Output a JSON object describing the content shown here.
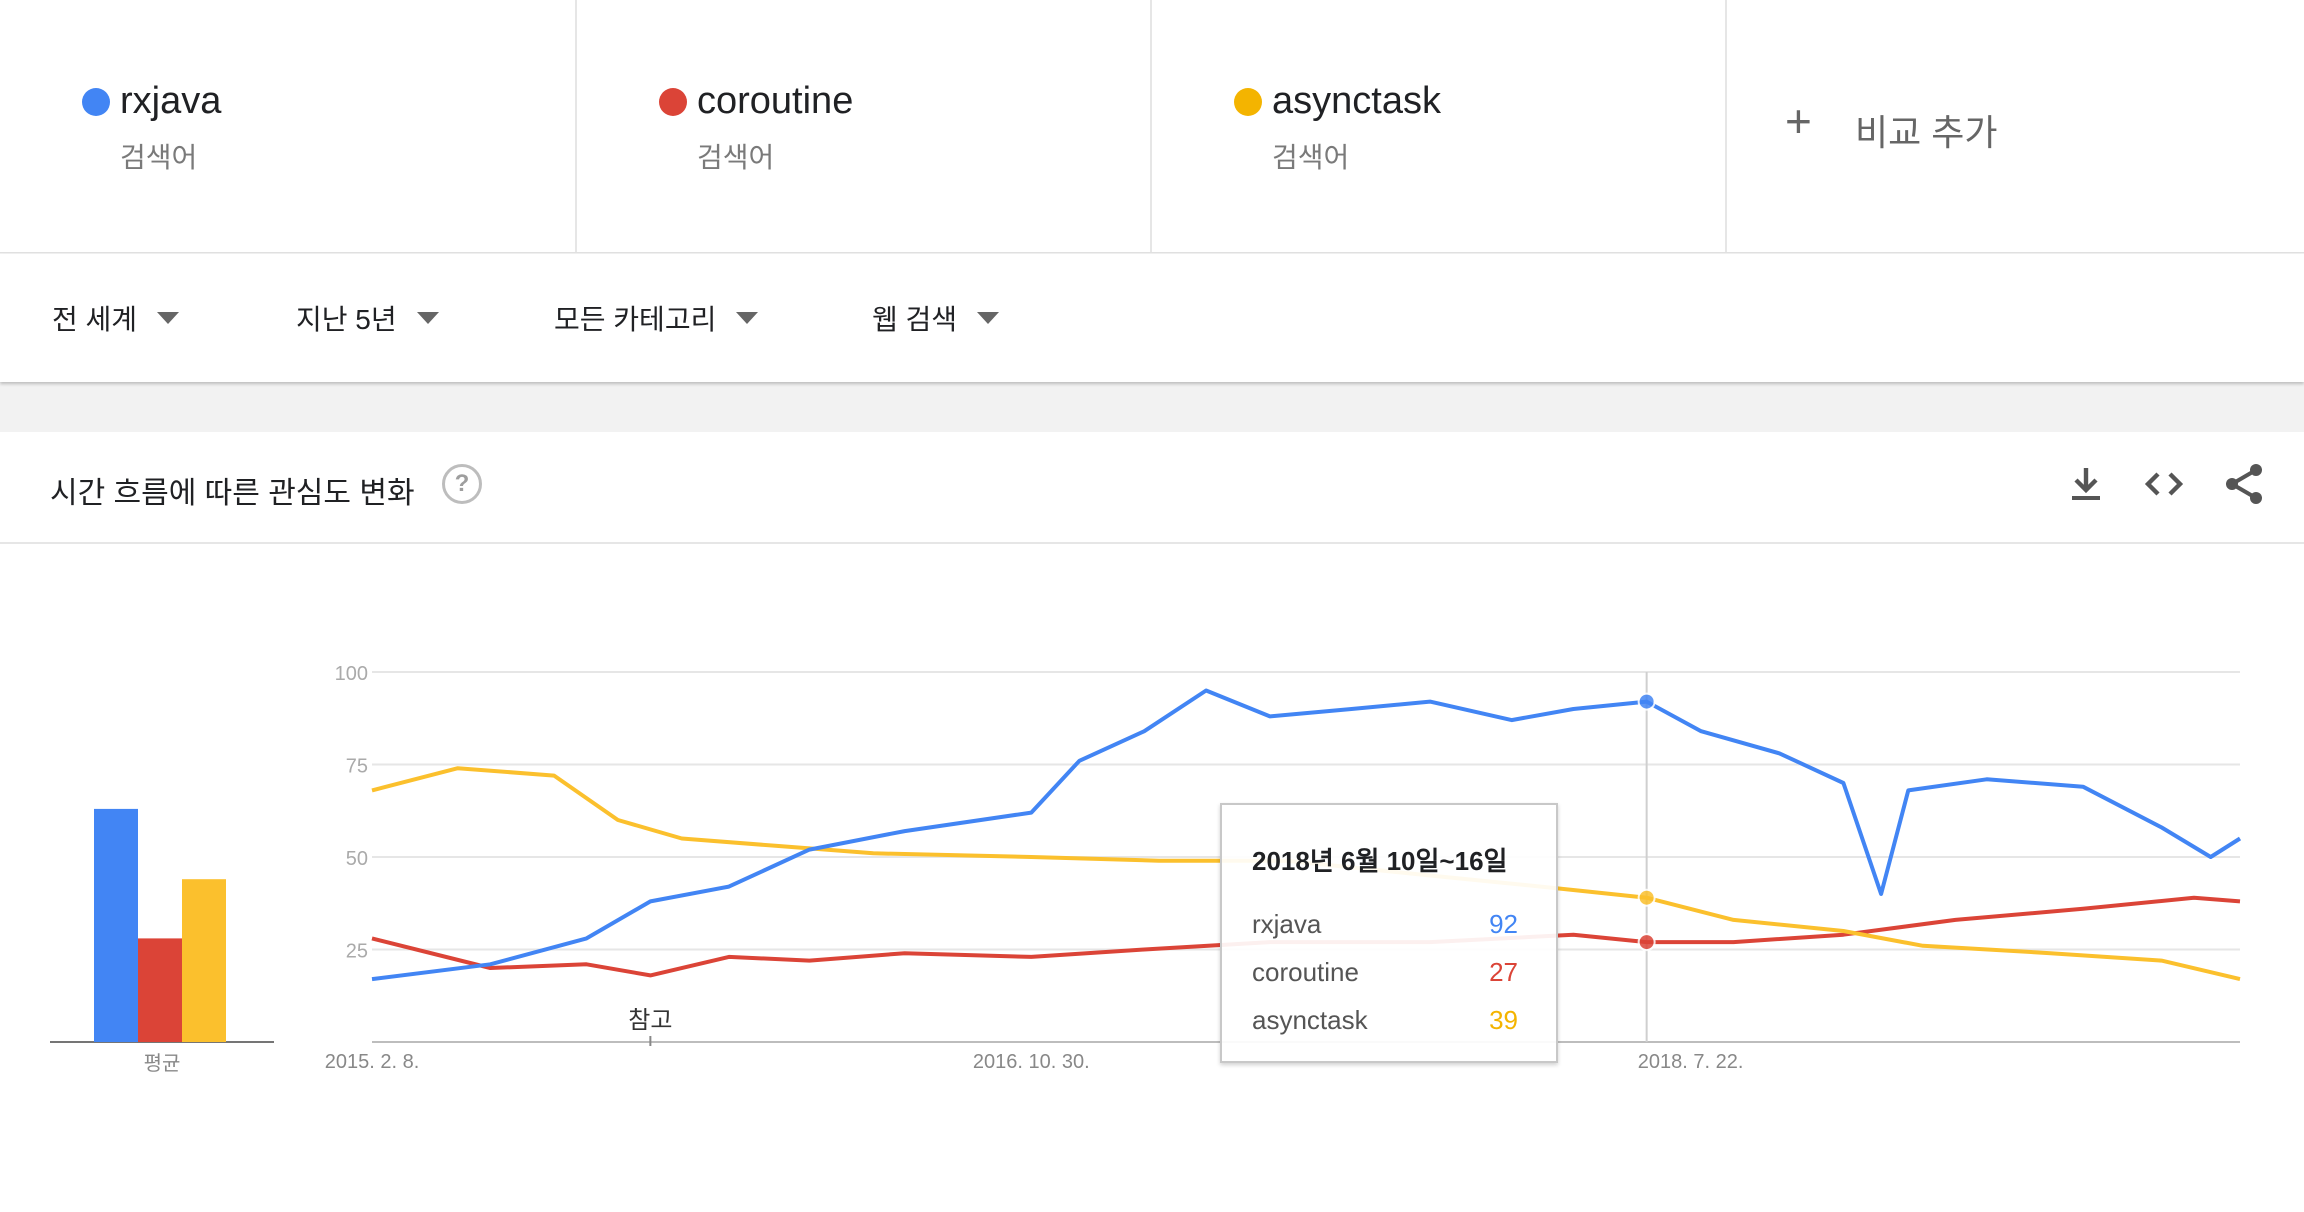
{
  "terms": [
    {
      "name": "rxjava",
      "sub": "검색어",
      "color": "#4285f4"
    },
    {
      "name": "coroutine",
      "sub": "검색어",
      "color": "#db4437"
    },
    {
      "name": "asynctask",
      "sub": "검색어",
      "color": "#f4b400"
    }
  ],
  "add_compare": {
    "plus": "+",
    "label": "비교 추가"
  },
  "filters": [
    {
      "label": "전 세계"
    },
    {
      "label": "지난 5년"
    },
    {
      "label": "모든 카테고리"
    },
    {
      "label": "웹 검색"
    }
  ],
  "chart_card": {
    "title": "시간 흐름에 따른 관심도 변화",
    "help": "?",
    "icons": [
      "download-icon",
      "embed-code-icon",
      "share-icon"
    ]
  },
  "tooltip": {
    "title": "2018년 6월 10일~16일",
    "rows": [
      {
        "name": "rxjava",
        "value": "92",
        "color": "#4285f4"
      },
      {
        "name": "coroutine",
        "value": "27",
        "color": "#db4437"
      },
      {
        "name": "asynctask",
        "value": "39",
        "color": "#f4b400"
      }
    ]
  },
  "chart_data": [
    {
      "type": "bar",
      "categories": [
        "rxjava",
        "coroutine",
        "asynctask"
      ],
      "values": [
        63,
        28,
        44
      ],
      "xlabel": "평균",
      "ylim": [
        0,
        100
      ],
      "colors": [
        "#4285f4",
        "#db4437",
        "#fbc02d"
      ]
    },
    {
      "type": "line",
      "x_start": "2015-02-08",
      "x_end": "2019-12-29",
      "x_ticks": [
        "2015. 2. 8.",
        "2016. 10. 30.",
        "2018. 7. 22."
      ],
      "x_tick_dates": [
        "2015-02-08",
        "2016-10-30",
        "2018-07-22"
      ],
      "y_ticks": [
        25,
        50,
        75,
        100
      ],
      "ylim": [
        0,
        100
      ],
      "annotation": {
        "label": "참고",
        "date": "2015-11-01"
      },
      "hover_date": "2018-06-10",
      "grid": true,
      "series": [
        {
          "name": "rxjava",
          "color": "#4285f4",
          "points": [
            {
              "date": "2015-02-08",
              "value": 17
            },
            {
              "date": "2015-06-01",
              "value": 21
            },
            {
              "date": "2015-09-01",
              "value": 28
            },
            {
              "date": "2015-11-01",
              "value": 38
            },
            {
              "date": "2016-01-15",
              "value": 42
            },
            {
              "date": "2016-04-01",
              "value": 52
            },
            {
              "date": "2016-07-01",
              "value": 57
            },
            {
              "date": "2016-10-30",
              "value": 62
            },
            {
              "date": "2016-12-15",
              "value": 76
            },
            {
              "date": "2017-02-15",
              "value": 84
            },
            {
              "date": "2017-04-15",
              "value": 95
            },
            {
              "date": "2017-06-15",
              "value": 88
            },
            {
              "date": "2017-09-01",
              "value": 90
            },
            {
              "date": "2017-11-15",
              "value": 92
            },
            {
              "date": "2018-02-01",
              "value": 87
            },
            {
              "date": "2018-04-01",
              "value": 90
            },
            {
              "date": "2018-06-10",
              "value": 92
            },
            {
              "date": "2018-08-01",
              "value": 84
            },
            {
              "date": "2018-10-15",
              "value": 78
            },
            {
              "date": "2018-12-15",
              "value": 70
            },
            {
              "date": "2019-01-20",
              "value": 40
            },
            {
              "date": "2019-02-15",
              "value": 68
            },
            {
              "date": "2019-05-01",
              "value": 71
            },
            {
              "date": "2019-08-01",
              "value": 69
            },
            {
              "date": "2019-10-15",
              "value": 58
            },
            {
              "date": "2019-12-01",
              "value": 50
            },
            {
              "date": "2019-12-29",
              "value": 55
            }
          ]
        },
        {
          "name": "coroutine",
          "color": "#db4437",
          "points": [
            {
              "date": "2015-02-08",
              "value": 28
            },
            {
              "date": "2015-06-01",
              "value": 20
            },
            {
              "date": "2015-09-01",
              "value": 21
            },
            {
              "date": "2015-11-01",
              "value": 18
            },
            {
              "date": "2016-01-15",
              "value": 23
            },
            {
              "date": "2016-04-01",
              "value": 22
            },
            {
              "date": "2016-07-01",
              "value": 24
            },
            {
              "date": "2016-10-30",
              "value": 23
            },
            {
              "date": "2017-02-15",
              "value": 25
            },
            {
              "date": "2017-06-15",
              "value": 27
            },
            {
              "date": "2017-11-15",
              "value": 27
            },
            {
              "date": "2018-04-01",
              "value": 29
            },
            {
              "date": "2018-06-10",
              "value": 27
            },
            {
              "date": "2018-09-01",
              "value": 27
            },
            {
              "date": "2018-12-15",
              "value": 29
            },
            {
              "date": "2019-04-01",
              "value": 33
            },
            {
              "date": "2019-08-01",
              "value": 36
            },
            {
              "date": "2019-11-15",
              "value": 39
            },
            {
              "date": "2019-12-29",
              "value": 38
            }
          ]
        },
        {
          "name": "asynctask",
          "color": "#fbc02d",
          "points": [
            {
              "date": "2015-02-08",
              "value": 68
            },
            {
              "date": "2015-05-01",
              "value": 74
            },
            {
              "date": "2015-08-01",
              "value": 72
            },
            {
              "date": "2015-10-01",
              "value": 60
            },
            {
              "date": "2015-12-01",
              "value": 55
            },
            {
              "date": "2016-03-01",
              "value": 53
            },
            {
              "date": "2016-06-01",
              "value": 51
            },
            {
              "date": "2016-10-30",
              "value": 50
            },
            {
              "date": "2017-03-01",
              "value": 49
            },
            {
              "date": "2017-07-01",
              "value": 49
            },
            {
              "date": "2017-11-15",
              "value": 45
            },
            {
              "date": "2018-03-01",
              "value": 42
            },
            {
              "date": "2018-06-10",
              "value": 39
            },
            {
              "date": "2018-09-01",
              "value": 33
            },
            {
              "date": "2018-12-15",
              "value": 30
            },
            {
              "date": "2019-03-01",
              "value": 26
            },
            {
              "date": "2019-07-01",
              "value": 24
            },
            {
              "date": "2019-10-15",
              "value": 22
            },
            {
              "date": "2019-12-29",
              "value": 17
            }
          ]
        }
      ]
    }
  ]
}
